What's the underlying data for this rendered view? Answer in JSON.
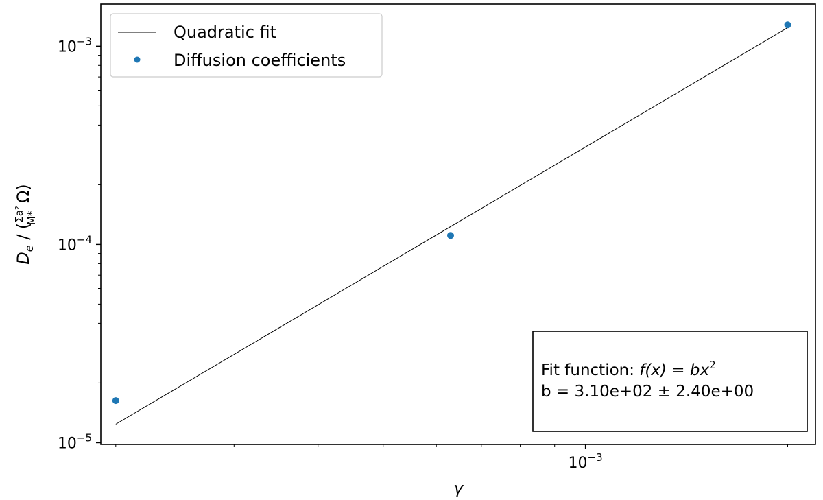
{
  "chart_data": {
    "type": "scatter",
    "title": "",
    "xlabel": "γ",
    "ylabel": "De / (Σa²/M* Ω)",
    "xscale": "log",
    "yscale": "log",
    "xlim": [
      0.00019,
      0.0022
    ],
    "ylim": [
      9.8e-06,
      0.00163
    ],
    "grid": false,
    "legend_placement": "top-left",
    "x_tick_labels": [
      {
        "value": 0.001,
        "mantissa": "10",
        "exponent": "−3"
      }
    ],
    "y_tick_labels": [
      {
        "value": 1e-05,
        "mantissa": "10",
        "exponent": "−5"
      },
      {
        "value": 0.0001,
        "mantissa": "10",
        "exponent": "−4"
      },
      {
        "value": 0.001,
        "mantissa": "10",
        "exponent": "−3"
      }
    ],
    "series": [
      {
        "name": "Quadratic fit",
        "kind": "line",
        "color": "#000000",
        "x": [
          0.0002,
          0.002
        ],
        "y": [
          1.24e-05,
          0.00124
        ]
      },
      {
        "name": "Diffusion coefficients",
        "kind": "scatter",
        "color": "#1f77b4",
        "x": [
          0.0002,
          0.00063,
          0.002
        ],
        "y": [
          1.63e-05,
          0.000111,
          0.00128
        ]
      }
    ],
    "annotation": {
      "line1_prefix": "Fit function: ",
      "line1_math": "f(x) = bx",
      "line1_sup": "2",
      "line2": "b = 3.10e+02 ± 2.40e+00"
    }
  }
}
